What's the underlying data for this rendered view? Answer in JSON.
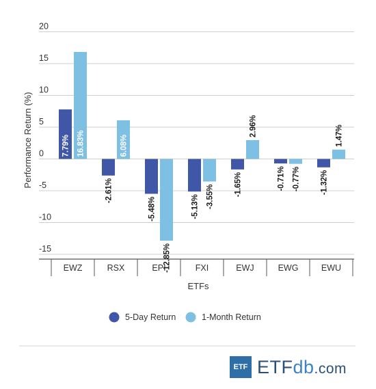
{
  "chart_data": {
    "type": "bar",
    "categories": [
      "EWZ",
      "RSX",
      "EPI",
      "FXI",
      "EWJ",
      "EWG",
      "EWU"
    ],
    "series": [
      {
        "name": "5-Day Return",
        "values": [
          7.79,
          -2.61,
          -5.48,
          -5.13,
          -1.65,
          -0.71,
          -1.32
        ],
        "labels": [
          "7.79%",
          "-2.61%",
          "-5.48%",
          "-5.13%",
          "-1.65%",
          "-0.71%",
          "-1.32%"
        ]
      },
      {
        "name": "1-Month Return",
        "values": [
          16.83,
          6.08,
          -12.85,
          -3.55,
          2.96,
          -0.77,
          1.47
        ],
        "labels": [
          "16.83%",
          "6.08%",
          "-12.85%",
          "-3.55%",
          "2.96%",
          "-0.77%",
          "1.47%"
        ]
      }
    ],
    "xlabel": "ETFs",
    "ylabel": "Performance Return (%)",
    "ylim": [
      -15,
      20
    ],
    "yticks": [
      "20",
      "15",
      "10",
      "5",
      "0",
      "-5",
      "-10",
      "-15"
    ],
    "grid": true,
    "legend_position": "bottom"
  },
  "colors": {
    "series": [
      "#4057a8",
      "#7ec0e3"
    ],
    "grid": "#cfcfcf",
    "axis": "#555555",
    "text": "#333333"
  },
  "brand": {
    "badge": "ETF",
    "name_main": "ETF",
    "name_db": "db",
    "name_suffix": ".com"
  }
}
